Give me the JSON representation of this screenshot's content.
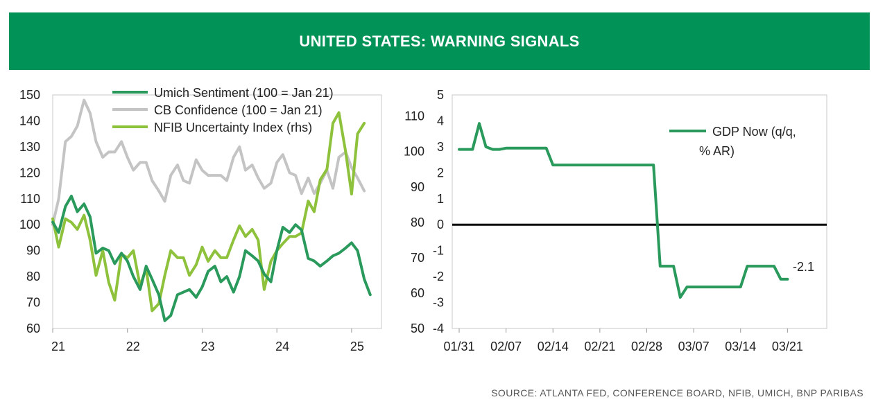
{
  "header": {
    "title": "UNITED STATES: WARNING SIGNALS"
  },
  "source": "SOURCE: ATLANTA FED, CONFERENCE BOARD, NFIB, UMICH, BNP PARIBAS",
  "colors": {
    "banner": "#009257",
    "umich": "#2a9a5c",
    "cb": "#c4c4c4",
    "nfib": "#8fc23c",
    "gdp": "#2a9a5c",
    "zero_line": "#000000",
    "frame": "#c8c8c8"
  },
  "chart_data": [
    {
      "type": "line",
      "title": "",
      "x_ticks": [
        "21",
        "22",
        "23",
        "24",
        "25"
      ],
      "x_range": [
        2021.0,
        2025.4
      ],
      "y_left_ticks": [
        "60",
        "70",
        "80",
        "90",
        "100",
        "110",
        "120",
        "130",
        "140",
        "150"
      ],
      "ylim_left": [
        60,
        150
      ],
      "y_right_ticks": [
        "50",
        "60",
        "70",
        "80",
        "90",
        "100",
        "110"
      ],
      "ylim_right": [
        50,
        116
      ],
      "series": [
        {
          "name": "Umich Sentiment (100 = Jan 21)",
          "axis": "left",
          "values": [
            [
              2021.0,
              101
            ],
            [
              2021.08,
              97
            ],
            [
              2021.17,
              107
            ],
            [
              2021.25,
              111
            ],
            [
              2021.33,
              105
            ],
            [
              2021.42,
              108
            ],
            [
              2021.5,
              103
            ],
            [
              2021.58,
              89
            ],
            [
              2021.67,
              91
            ],
            [
              2021.75,
              90
            ],
            [
              2021.83,
              85
            ],
            [
              2021.92,
              89
            ],
            [
              2022.0,
              86
            ],
            [
              2022.08,
              80
            ],
            [
              2022.17,
              75
            ],
            [
              2022.25,
              84
            ],
            [
              2022.33,
              79
            ],
            [
              2022.42,
              73
            ],
            [
              2022.5,
              63
            ],
            [
              2022.58,
              65
            ],
            [
              2022.67,
              73
            ],
            [
              2022.75,
              74
            ],
            [
              2022.83,
              75
            ],
            [
              2022.92,
              72
            ],
            [
              2023.0,
              76
            ],
            [
              2023.08,
              82
            ],
            [
              2023.17,
              84
            ],
            [
              2023.25,
              78
            ],
            [
              2023.33,
              80
            ],
            [
              2023.42,
              74
            ],
            [
              2023.5,
              80
            ],
            [
              2023.58,
              90
            ],
            [
              2023.67,
              88
            ],
            [
              2023.75,
              86
            ],
            [
              2023.83,
              81
            ],
            [
              2023.92,
              78
            ],
            [
              2024.0,
              90
            ],
            [
              2024.08,
              99
            ],
            [
              2024.17,
              97
            ],
            [
              2024.25,
              100
            ],
            [
              2024.33,
              98
            ],
            [
              2024.42,
              87
            ],
            [
              2024.5,
              86
            ],
            [
              2024.58,
              84
            ],
            [
              2024.67,
              86
            ],
            [
              2024.75,
              88
            ],
            [
              2024.83,
              89
            ],
            [
              2024.92,
              91
            ],
            [
              2025.0,
              93
            ],
            [
              2025.08,
              90
            ],
            [
              2025.17,
              79
            ],
            [
              2025.25,
              73
            ]
          ]
        },
        {
          "name": "CB Confidence (100 = Jan 21)",
          "axis": "left",
          "values": [
            [
              2021.0,
              100
            ],
            [
              2021.08,
              110
            ],
            [
              2021.17,
              132
            ],
            [
              2021.25,
              134
            ],
            [
              2021.33,
              138
            ],
            [
              2021.42,
              148
            ],
            [
              2021.5,
              143
            ],
            [
              2021.58,
              132
            ],
            [
              2021.67,
              126
            ],
            [
              2021.75,
              128
            ],
            [
              2021.83,
              128
            ],
            [
              2021.92,
              132
            ],
            [
              2022.0,
              126
            ],
            [
              2022.08,
              121
            ],
            [
              2022.17,
              124
            ],
            [
              2022.25,
              124
            ],
            [
              2022.33,
              117
            ],
            [
              2022.42,
              113
            ],
            [
              2022.5,
              109
            ],
            [
              2022.58,
              119
            ],
            [
              2022.67,
              123
            ],
            [
              2022.75,
              117
            ],
            [
              2022.83,
              116
            ],
            [
              2022.92,
              125
            ],
            [
              2023.0,
              121
            ],
            [
              2023.08,
              119
            ],
            [
              2023.17,
              119
            ],
            [
              2023.25,
              119
            ],
            [
              2023.33,
              117
            ],
            [
              2023.42,
              126
            ],
            [
              2023.5,
              130
            ],
            [
              2023.58,
              121
            ],
            [
              2023.67,
              123
            ],
            [
              2023.75,
              118
            ],
            [
              2023.83,
              114
            ],
            [
              2023.92,
              116
            ],
            [
              2024.0,
              124
            ],
            [
              2024.08,
              127
            ],
            [
              2024.17,
              120
            ],
            [
              2024.25,
              119
            ],
            [
              2024.33,
              112
            ],
            [
              2024.42,
              118
            ],
            [
              2024.5,
              112
            ],
            [
              2024.58,
              116
            ],
            [
              2024.67,
              121
            ],
            [
              2024.75,
              114
            ],
            [
              2024.83,
              126
            ],
            [
              2024.92,
              128
            ],
            [
              2025.0,
              122
            ],
            [
              2025.08,
              118
            ],
            [
              2025.17,
              113
            ]
          ]
        },
        {
          "name": "NFIB Uncertainty Index (rhs)",
          "axis": "right",
          "values": [
            [
              2021.0,
              81
            ],
            [
              2021.08,
              73
            ],
            [
              2021.17,
              81
            ],
            [
              2021.25,
              80
            ],
            [
              2021.33,
              78
            ],
            [
              2021.42,
              82
            ],
            [
              2021.5,
              75
            ],
            [
              2021.58,
              65
            ],
            [
              2021.67,
              72
            ],
            [
              2021.75,
              63
            ],
            [
              2021.83,
              58
            ],
            [
              2021.92,
              71
            ],
            [
              2022.0,
              70
            ],
            [
              2022.08,
              72
            ],
            [
              2022.17,
              62
            ],
            [
              2022.25,
              67
            ],
            [
              2022.33,
              55
            ],
            [
              2022.42,
              57
            ],
            [
              2022.5,
              65
            ],
            [
              2022.58,
              72
            ],
            [
              2022.67,
              70
            ],
            [
              2022.75,
              70
            ],
            [
              2022.83,
              65
            ],
            [
              2022.92,
              68
            ],
            [
              2023.0,
              73
            ],
            [
              2023.08,
              69
            ],
            [
              2023.17,
              72
            ],
            [
              2023.25,
              70
            ],
            [
              2023.33,
              70
            ],
            [
              2023.42,
              75
            ],
            [
              2023.5,
              79
            ],
            [
              2023.58,
              76
            ],
            [
              2023.67,
              78
            ],
            [
              2023.75,
              75
            ],
            [
              2023.83,
              61
            ],
            [
              2023.92,
              69
            ],
            [
              2024.0,
              72
            ],
            [
              2024.08,
              74
            ],
            [
              2024.17,
              76
            ],
            [
              2024.25,
              76
            ],
            [
              2024.33,
              77
            ],
            [
              2024.42,
              86
            ],
            [
              2024.5,
              83
            ],
            [
              2024.58,
              92
            ],
            [
              2024.67,
              95
            ],
            [
              2024.75,
              108
            ],
            [
              2024.83,
              111
            ],
            [
              2024.92,
              100
            ],
            [
              2025.0,
              88
            ],
            [
              2025.08,
              105
            ],
            [
              2025.17,
              108
            ]
          ]
        }
      ]
    },
    {
      "type": "line",
      "title": "",
      "x_ticks": [
        "01/31",
        "02/07",
        "02/14",
        "02/21",
        "02/28",
        "03/07",
        "03/14",
        "03/21"
      ],
      "x_range": [
        0,
        53
      ],
      "y_ticks": [
        "5",
        "4",
        "3",
        "2",
        "1",
        "0",
        "-1",
        "-2",
        "-3",
        "-4"
      ],
      "ylim": [
        -4,
        5
      ],
      "reference_line_y": 0,
      "annotation": "-2.1",
      "series": [
        {
          "name": "GDP Now (q/q, % AR)",
          "legend_lines": [
            "GDP Now (q/q,",
            "% AR)"
          ],
          "values": [
            [
              0,
              2.9
            ],
            [
              1,
              2.9
            ],
            [
              2,
              2.9
            ],
            [
              3,
              3.9
            ],
            [
              4,
              3.0
            ],
            [
              5,
              2.9
            ],
            [
              6,
              2.9
            ],
            [
              7,
              2.95
            ],
            [
              8,
              2.95
            ],
            [
              9,
              2.95
            ],
            [
              10,
              2.95
            ],
            [
              11,
              2.95
            ],
            [
              12,
              2.95
            ],
            [
              13,
              2.95
            ],
            [
              14,
              2.3
            ],
            [
              15,
              2.3
            ],
            [
              16,
              2.3
            ],
            [
              17,
              2.3
            ],
            [
              18,
              2.3
            ],
            [
              19,
              2.3
            ],
            [
              20,
              2.3
            ],
            [
              21,
              2.3
            ],
            [
              22,
              2.3
            ],
            [
              23,
              2.3
            ],
            [
              24,
              2.3
            ],
            [
              25,
              2.3
            ],
            [
              26,
              2.3
            ],
            [
              27,
              2.3
            ],
            [
              28,
              2.3
            ],
            [
              29,
              2.3
            ],
            [
              30,
              -1.6
            ],
            [
              31,
              -1.6
            ],
            [
              32,
              -1.6
            ],
            [
              33,
              -2.8
            ],
            [
              34,
              -2.4
            ],
            [
              35,
              -2.4
            ],
            [
              36,
              -2.4
            ],
            [
              37,
              -2.4
            ],
            [
              38,
              -2.4
            ],
            [
              39,
              -2.4
            ],
            [
              40,
              -2.4
            ],
            [
              41,
              -2.4
            ],
            [
              42,
              -2.4
            ],
            [
              43,
              -1.6
            ],
            [
              44,
              -1.6
            ],
            [
              45,
              -1.6
            ],
            [
              46,
              -1.6
            ],
            [
              47,
              -1.6
            ],
            [
              48,
              -2.1
            ],
            [
              49,
              -2.1
            ]
          ]
        }
      ]
    }
  ]
}
